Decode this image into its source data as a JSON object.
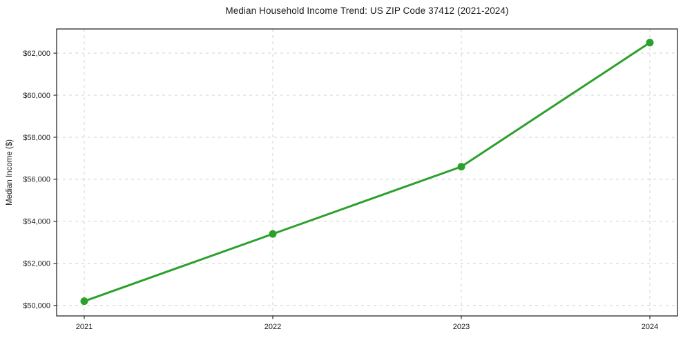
{
  "chart_data": {
    "type": "line",
    "title": "Median Household Income Trend: US ZIP Code 37412 (2021-2024)",
    "xlabel": "",
    "ylabel": "Median Income ($)",
    "categories": [
      "2021",
      "2022",
      "2023",
      "2024"
    ],
    "series": [
      {
        "name": "Median Household Income",
        "values": [
          50200,
          53400,
          56600,
          62500
        ],
        "color": "#2ca02c",
        "marker": "circle",
        "line_width": 3,
        "marker_radius": 5.5
      }
    ],
    "y_ticks": [
      50000,
      52000,
      54000,
      56000,
      58000,
      60000,
      62000
    ],
    "y_tick_labels": [
      "$50,000",
      "$52,000",
      "$54,000",
      "$56,000",
      "$58,000",
      "$60,000",
      "$62,000"
    ],
    "ylim": [
      49500,
      63150
    ],
    "grid": {
      "visible": true,
      "style": "dashed",
      "color": "#d0d0d0",
      "axes": "both"
    },
    "legend": {
      "visible": false,
      "position": "none"
    },
    "axis_color": "#2a2a2a",
    "tick_color": "#2a2a2a",
    "text_color": "#1a1a1a",
    "background": "#ffffff"
  }
}
